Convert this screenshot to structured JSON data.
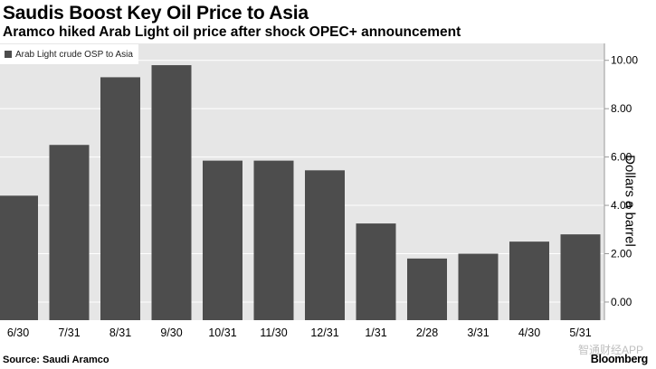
{
  "title": "Saudis Boost Key Oil Price to Asia",
  "subtitle": "Aramco hiked Arab Light oil price after shock OPEC+ announcement",
  "source": "Source: Saudi Aramco",
  "logo": "Bloomberg",
  "watermark": "智通财经APP",
  "colors": {
    "bar": "#4d4d4d",
    "plot_bg": "#e6e6e6",
    "grid": "#ffffff"
  },
  "chart_data": {
    "type": "bar",
    "categories": [
      "6/30",
      "7/31",
      "8/31",
      "9/30",
      "10/31",
      "11/30",
      "12/31",
      "1/31",
      "2/28",
      "3/31",
      "4/30",
      "5/31"
    ],
    "series": [
      {
        "name": "Arab Light crude OSP to Asia",
        "values": [
          4.4,
          6.5,
          9.3,
          9.8,
          5.85,
          5.85,
          5.45,
          3.25,
          1.8,
          2.0,
          2.5,
          2.8
        ]
      }
    ],
    "ylabel": "Dollars a barrel",
    "xlabel": "",
    "ylim": [
      -0.75,
      10.7
    ],
    "yticks": [
      "0.00",
      "2.00",
      "4.00",
      "6.00",
      "8.00",
      "10.00"
    ],
    "axis_side": "right",
    "grid": true,
    "legend_position": "top-left"
  }
}
